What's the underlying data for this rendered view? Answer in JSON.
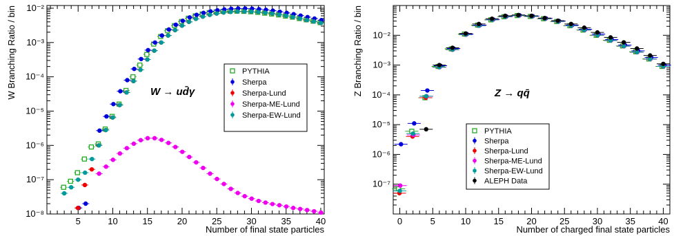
{
  "chart_data": [
    {
      "type": "scatter",
      "xlabel": "Number of final state particles",
      "ylabel": "W Branching Ratio / bin",
      "annotation": "W → ud̄γ",
      "xlim": [
        0.5,
        40.5
      ],
      "ylim": [
        1e-08,
        0.012
      ],
      "yscale": "log",
      "xticks": [
        5,
        10,
        15,
        20,
        25,
        30,
        35,
        40
      ],
      "yticks": [
        {
          "value": 1e-08,
          "label": "10⁻⁸"
        },
        {
          "value": 1e-07,
          "label": "10⁻⁷"
        },
        {
          "value": 1e-06,
          "label": "10⁻⁶"
        },
        {
          "value": 1e-05,
          "label": "10⁻⁵"
        },
        {
          "value": 0.0001,
          "label": "10⁻⁴"
        },
        {
          "value": 0.001,
          "label": "10⁻³"
        },
        {
          "value": 0.01,
          "label": "10⁻²"
        }
      ],
      "grid": false,
      "legend_position": "right-middle",
      "series": [
        {
          "name": "PYTHIA",
          "color": "#22aa22",
          "marker": "open-square",
          "x": [
            3,
            4,
            5,
            6,
            7,
            8,
            9,
            10,
            11,
            12,
            13,
            14,
            15,
            16,
            17,
            18,
            19,
            20,
            21,
            22,
            23,
            24,
            25,
            26,
            27,
            28,
            29,
            30,
            31,
            32,
            33,
            34,
            35,
            36,
            37,
            38,
            39,
            40
          ],
          "y": [
            6e-08,
            9e-08,
            1.6e-07,
            4e-07,
            9e-07,
            1.1e-06,
            3e-06,
            7e-06,
            1.6e-05,
            4e-05,
            0.0001,
            0.00022,
            0.00045,
            0.0009,
            0.0015,
            0.0022,
            0.0031,
            0.0041,
            0.0051,
            0.006,
            0.0068,
            0.0074,
            0.0078,
            0.0081,
            0.0082,
            0.0082,
            0.0081,
            0.0079,
            0.0076,
            0.0072,
            0.0068,
            0.0064,
            0.0059,
            0.0055,
            0.005,
            0.0046,
            0.0042,
            0.0038
          ]
        },
        {
          "name": "Sherpa",
          "color": "#0000dd",
          "marker": "dot",
          "x": [
            5,
            6,
            8,
            9,
            10,
            11,
            12,
            13,
            14,
            15,
            16,
            17,
            18,
            19,
            20,
            21,
            22,
            23,
            24,
            25,
            26,
            27,
            28,
            29,
            30,
            31,
            32,
            33,
            34,
            35,
            36,
            37,
            38,
            39,
            40
          ],
          "y": [
            1.5e-08,
            2e-08,
            2.7e-06,
            7e-06,
            1.6e-05,
            3.8e-05,
            8e-05,
            0.00017,
            0.00033,
            0.0006,
            0.001,
            0.0016,
            0.0024,
            0.0033,
            0.0043,
            0.0054,
            0.0064,
            0.0073,
            0.0081,
            0.0087,
            0.0092,
            0.0096,
            0.0098,
            0.0098,
            0.0097,
            0.0094,
            0.009,
            0.0085,
            0.0079,
            0.0073,
            0.0067,
            0.0061,
            0.0055,
            0.005,
            0.0045
          ]
        },
        {
          "name": "Sherpa-Lund",
          "color": "#ee0000",
          "marker": "dot",
          "x": [
            5,
            6,
            7,
            8,
            9,
            10,
            11,
            12,
            13,
            14,
            15,
            16,
            17,
            18,
            19,
            20,
            21,
            22,
            23,
            24,
            25,
            26,
            27,
            28,
            29,
            30,
            31,
            32,
            33,
            34,
            35,
            36,
            37,
            38,
            39,
            40
          ],
          "y": [
            1.5e-08,
            7e-08,
            2e-07,
            1e-06,
            2.8e-06,
            6.5e-06,
            1.5e-05,
            3.5e-05,
            7.5e-05,
            0.00016,
            0.00032,
            0.00058,
            0.001,
            0.0016,
            0.0023,
            0.0031,
            0.004,
            0.0049,
            0.0057,
            0.0064,
            0.007,
            0.0075,
            0.0078,
            0.008,
            0.008,
            0.0079,
            0.0077,
            0.0074,
            0.007,
            0.0065,
            0.006,
            0.0055,
            0.005,
            0.0045,
            0.0041,
            0.0037
          ]
        },
        {
          "name": "Sherpa-ME-Lund",
          "color": "#ee00ee",
          "marker": "dot",
          "x": [
            8,
            9,
            10,
            11,
            12,
            13,
            14,
            15,
            16,
            17,
            18,
            19,
            20,
            21,
            22,
            23,
            24,
            25,
            26,
            27,
            28,
            29,
            30,
            31,
            32,
            33,
            34,
            35,
            36,
            37,
            38,
            39,
            40
          ],
          "y": [
            1.5e-07,
            2.4e-07,
            3.8e-07,
            5.8e-07,
            8.3e-07,
            1.12e-06,
            1.42e-06,
            1.62e-06,
            1.62e-06,
            1.45e-06,
            1.18e-06,
            9e-07,
            6.5e-07,
            4.6e-07,
            3.2e-07,
            2.2e-07,
            1.5e-07,
            1.05e-07,
            7.5e-08,
            5.4e-08,
            4.1e-08,
            3.3e-08,
            2.8e-08,
            2.4e-08,
            2.15e-08,
            1.95e-08,
            1.8e-08,
            1.65e-08,
            1.5e-08,
            1.4e-08,
            1.3e-08,
            1.2e-08,
            1.1e-08
          ]
        },
        {
          "name": "Sherpa-EW-Lund",
          "color": "#009999",
          "marker": "dot",
          "x": [
            3,
            4,
            5,
            6,
            7,
            8,
            9,
            10,
            11,
            12,
            13,
            14,
            15,
            16,
            17,
            18,
            19,
            20,
            21,
            22,
            23,
            24,
            25,
            26,
            27,
            28,
            29,
            30,
            31,
            32,
            33,
            34,
            35,
            36,
            37,
            38,
            39,
            40
          ],
          "y": [
            4e-08,
            6e-08,
            1e-07,
            1.6e-07,
            4e-07,
            1e-06,
            2.8e-06,
            6.5e-06,
            1.5e-05,
            3.5e-05,
            7.5e-05,
            0.00016,
            0.00032,
            0.00058,
            0.001,
            0.0016,
            0.0023,
            0.0031,
            0.004,
            0.0049,
            0.0057,
            0.0064,
            0.007,
            0.0075,
            0.0078,
            0.008,
            0.008,
            0.0079,
            0.0077,
            0.0074,
            0.007,
            0.0065,
            0.006,
            0.0055,
            0.005,
            0.0045,
            0.0041,
            0.0037
          ]
        }
      ]
    },
    {
      "type": "scatter",
      "xlabel": "Number of charged final state particles",
      "ylabel": "Z Branching Ratio / bin",
      "annotation": "Z → qq̄",
      "xlim": [
        -1,
        41
      ],
      "ylim": [
        1e-08,
        0.1
      ],
      "yscale": "log",
      "xticks": [
        0,
        5,
        10,
        15,
        20,
        25,
        30,
        35,
        40
      ],
      "yticks": [
        {
          "value": 1e-07,
          "label": "10⁻⁷"
        },
        {
          "value": 1e-06,
          "label": "10⁻⁶"
        },
        {
          "value": 1e-05,
          "label": "10⁻⁵"
        },
        {
          "value": 0.0001,
          "label": "10⁻⁴"
        },
        {
          "value": 0.001,
          "label": "10⁻³"
        },
        {
          "value": 0.01,
          "label": "10⁻²"
        }
      ],
      "grid": false,
      "legend_position": "left-bottom",
      "series": [
        {
          "name": "PYTHIA",
          "color": "#22aa22",
          "marker": "open-square",
          "x": [
            0,
            2,
            4,
            6,
            8,
            10,
            12,
            14,
            16,
            18,
            20,
            22,
            24,
            26,
            28,
            30,
            32,
            34,
            36,
            38,
            40
          ],
          "y": [
            7e-08,
            6e-06,
            8e-05,
            0.0009,
            0.0035,
            0.011,
            0.022,
            0.033,
            0.042,
            0.046,
            0.043,
            0.036,
            0.029,
            0.021,
            0.015,
            0.01,
            0.0068,
            0.0044,
            0.0028,
            0.0016,
            0.0009
          ]
        },
        {
          "name": "Sherpa",
          "color": "#0000dd",
          "marker": "dot",
          "x": [
            0,
            2,
            4,
            6,
            8,
            10,
            12,
            14,
            16,
            18,
            20,
            22,
            24,
            26,
            28,
            30,
            32,
            34,
            36,
            38,
            40
          ],
          "y": [
            2.2e-06,
            1.1e-05,
            0.00014,
            0.00095,
            0.0036,
            0.011,
            0.022,
            0.034,
            0.043,
            0.047,
            0.044,
            0.037,
            0.03,
            0.022,
            0.016,
            0.011,
            0.0072,
            0.0047,
            0.003,
            0.0018,
            0.001
          ]
        },
        {
          "name": "Sherpa-Lund",
          "color": "#ee0000",
          "marker": "dot",
          "x": [
            0,
            2,
            4,
            6,
            8,
            10,
            12,
            14,
            16,
            18,
            20,
            22,
            24,
            26,
            28,
            30,
            32,
            34,
            36,
            38,
            40
          ],
          "y": [
            5e-08,
            4e-06,
            8e-05,
            0.00085,
            0.0033,
            0.0105,
            0.021,
            0.033,
            0.042,
            0.046,
            0.043,
            0.036,
            0.029,
            0.021,
            0.015,
            0.01,
            0.0067,
            0.0043,
            0.0027,
            0.0016,
            0.0009
          ]
        },
        {
          "name": "Sherpa-ME-Lund",
          "color": "#ee00ee",
          "marker": "dot",
          "x": [
            0,
            2,
            4,
            6,
            8,
            10,
            12,
            14,
            16,
            18,
            20,
            22,
            24,
            26,
            28,
            30,
            32,
            34,
            36,
            38,
            40
          ],
          "y": [
            9e-08,
            4.5e-06,
            9e-05,
            0.00085,
            0.0033,
            0.0105,
            0.021,
            0.033,
            0.042,
            0.046,
            0.043,
            0.036,
            0.029,
            0.021,
            0.015,
            0.01,
            0.0067,
            0.0043,
            0.0027,
            0.0016,
            0.0009
          ]
        },
        {
          "name": "Sherpa-EW-Lund",
          "color": "#009999",
          "marker": "dot",
          "x": [
            0,
            2,
            4,
            6,
            8,
            10,
            12,
            14,
            16,
            18,
            20,
            22,
            24,
            26,
            28,
            30,
            32,
            34,
            36,
            38,
            40
          ],
          "y": [
            6e-08,
            5e-06,
            9e-05,
            0.00085,
            0.0033,
            0.0105,
            0.021,
            0.033,
            0.042,
            0.046,
            0.043,
            0.036,
            0.029,
            0.021,
            0.015,
            0.01,
            0.0067,
            0.0043,
            0.0027,
            0.0016,
            0.0009
          ]
        },
        {
          "name": "ALEPH Data",
          "color": "#000000",
          "marker": "dot",
          "x": [
            4,
            6,
            8,
            10,
            12,
            14,
            16,
            18,
            20,
            22,
            24,
            26,
            28,
            30,
            32,
            34,
            36,
            38,
            40
          ],
          "y": [
            7e-06,
            0.001,
            0.0038,
            0.0115,
            0.024,
            0.036,
            0.045,
            0.048,
            0.045,
            0.038,
            0.031,
            0.024,
            0.018,
            0.0125,
            0.0085,
            0.0058,
            0.0036,
            0.0021,
            0.0011
          ]
        }
      ]
    }
  ]
}
